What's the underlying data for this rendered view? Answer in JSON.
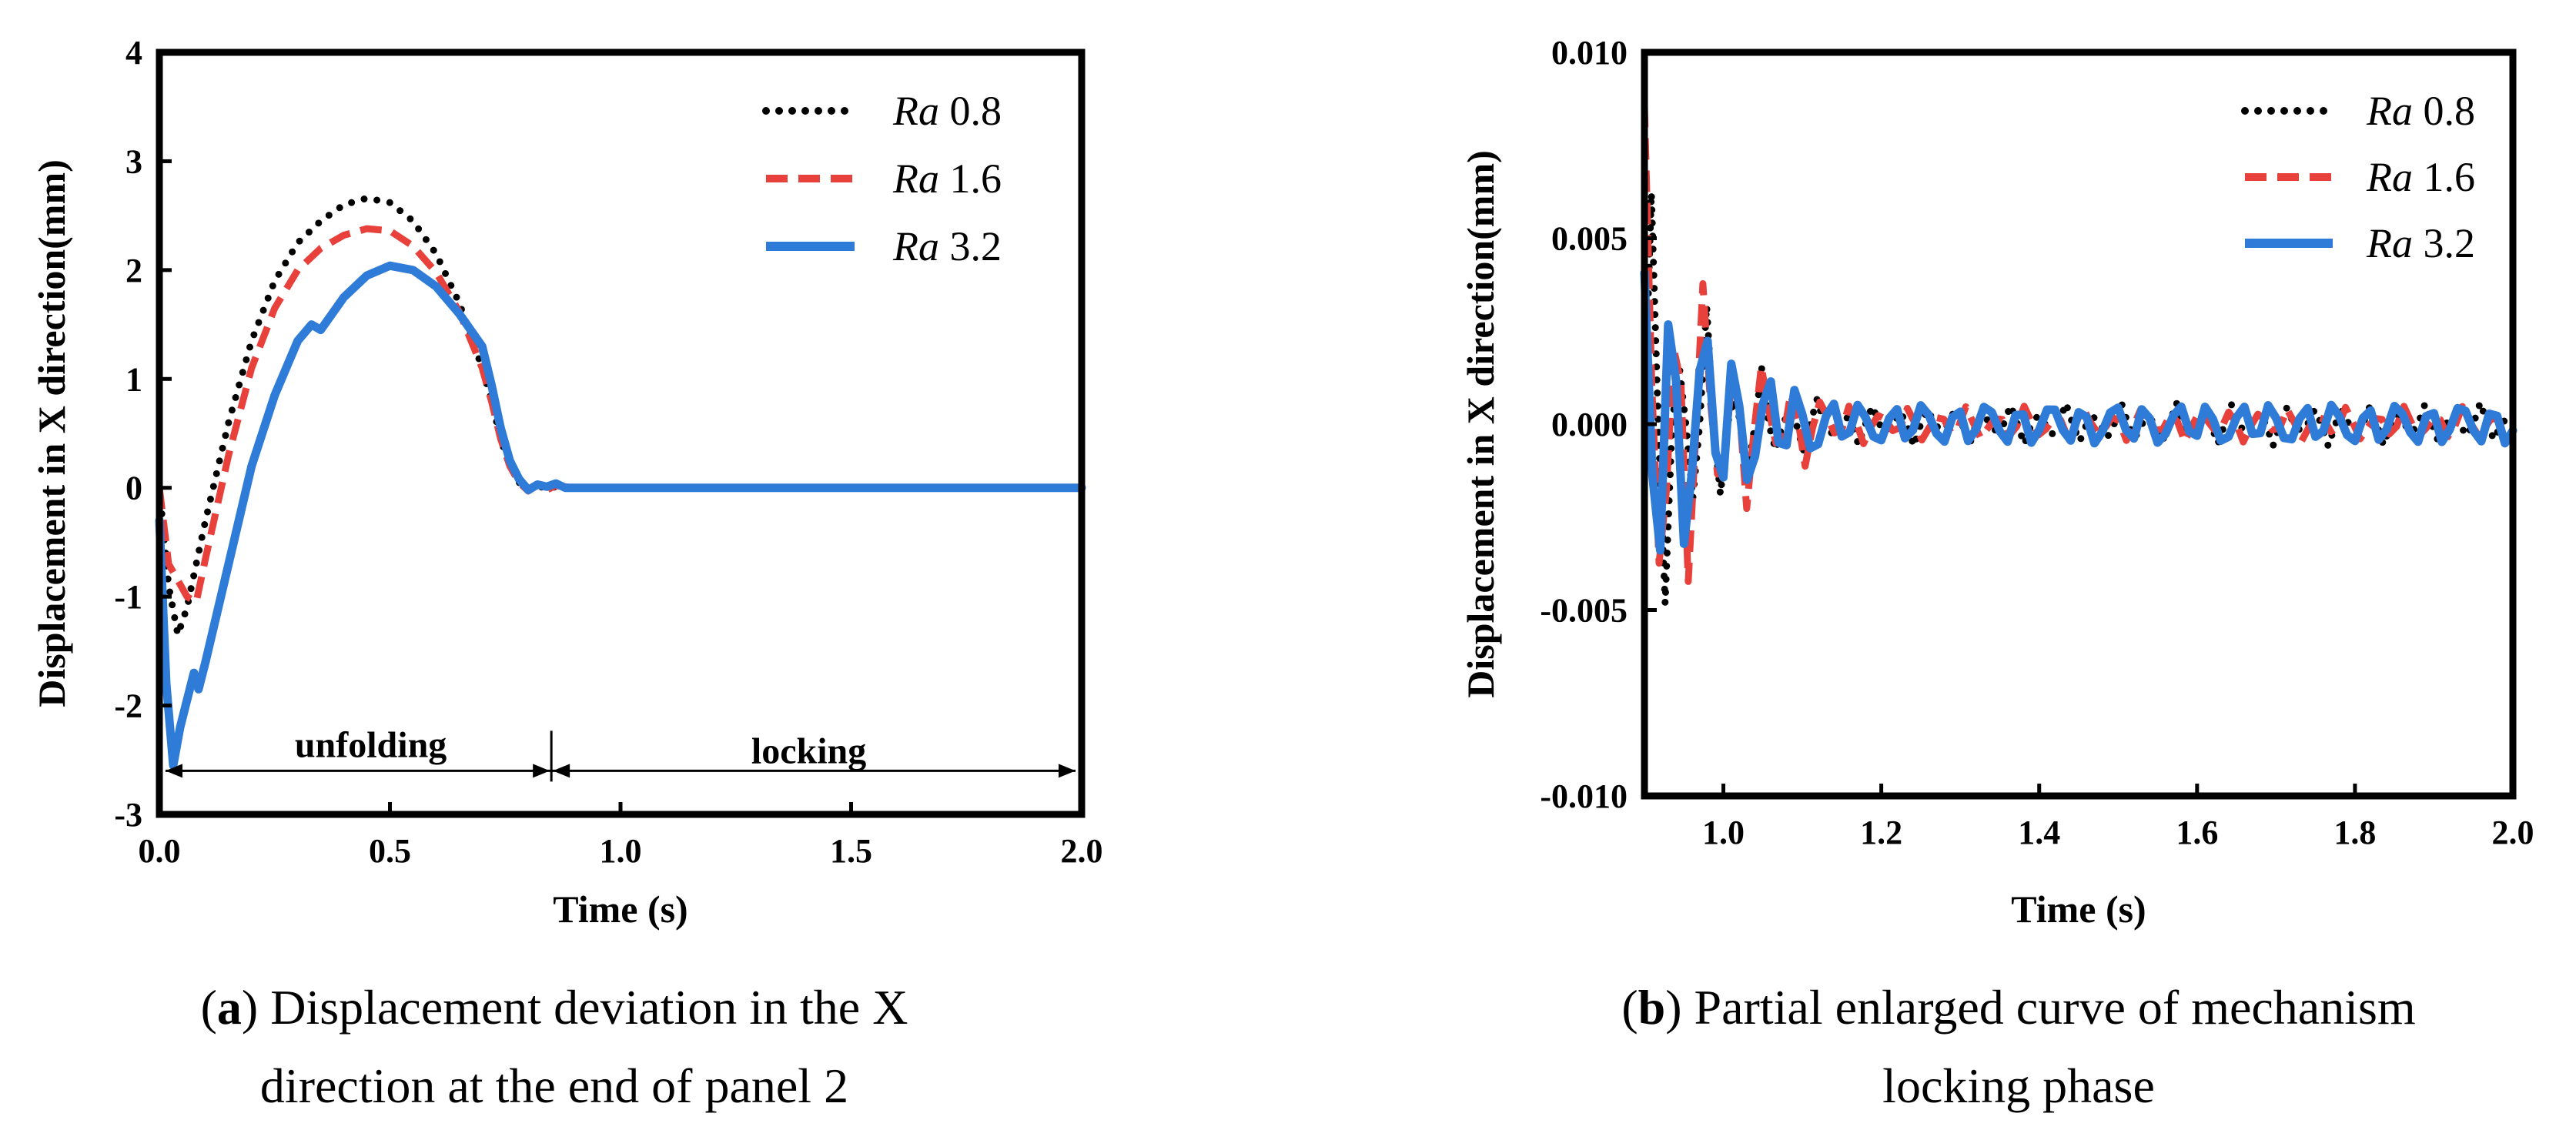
{
  "chart_data": [
    {
      "type": "line",
      "panel": "a",
      "xlabel": "Time (s)",
      "ylabel": "Displacement in X direction(mm)",
      "xlim": [
        0.0,
        2.0
      ],
      "ylim": [
        -3,
        4
      ],
      "xticks": [
        0.0,
        0.5,
        1.0,
        1.5,
        2.0
      ],
      "xtick_labels": [
        "0.0",
        "0.5",
        "1.0",
        "1.5",
        "2.0"
      ],
      "yticks": [
        -3,
        -2,
        -1,
        0,
        1,
        2,
        3,
        4
      ],
      "ytick_labels": [
        "-3",
        "-2",
        "-1",
        "0",
        "1",
        "2",
        "3",
        "4"
      ],
      "legend_position": "top-right",
      "annotations": {
        "split_x": 0.85,
        "arrow_y": -2.6,
        "unfolding_label": "unfolding",
        "locking_label": "locking"
      },
      "series": [
        {
          "name_prefix": "Ra",
          "name_value": "0.8",
          "color": "#000000",
          "style": "dotted",
          "points": [
            [
              0,
              0
            ],
            [
              0.02,
              -0.9
            ],
            [
              0.04,
              -1.35
            ],
            [
              0.06,
              -1.1
            ],
            [
              0.08,
              -0.7
            ],
            [
              0.1,
              -0.3
            ],
            [
              0.15,
              0.6
            ],
            [
              0.2,
              1.35
            ],
            [
              0.25,
              1.9
            ],
            [
              0.3,
              2.25
            ],
            [
              0.35,
              2.45
            ],
            [
              0.4,
              2.6
            ],
            [
              0.45,
              2.66
            ],
            [
              0.5,
              2.62
            ],
            [
              0.55,
              2.45
            ],
            [
              0.6,
              2.15
            ],
            [
              0.65,
              1.7
            ],
            [
              0.7,
              1.1
            ],
            [
              0.72,
              0.8
            ],
            [
              0.74,
              0.45
            ],
            [
              0.76,
              0.2
            ],
            [
              0.78,
              0.05
            ],
            [
              0.8,
              -0.02
            ],
            [
              0.82,
              0.02
            ],
            [
              0.84,
              -0.01
            ],
            [
              0.86,
              0.01
            ],
            [
              0.9,
              0
            ],
            [
              1.0,
              0
            ],
            [
              1.5,
              0
            ],
            [
              2.0,
              0
            ]
          ]
        },
        {
          "name_prefix": "Ra",
          "name_value": "1.6",
          "color": "#e8413c",
          "style": "dashed",
          "points": [
            [
              0,
              0
            ],
            [
              0.02,
              -0.7
            ],
            [
              0.04,
              -0.85
            ],
            [
              0.06,
              -1.0
            ],
            [
              0.08,
              -1.05
            ],
            [
              0.1,
              -0.65
            ],
            [
              0.15,
              0.3
            ],
            [
              0.2,
              1.1
            ],
            [
              0.25,
              1.65
            ],
            [
              0.3,
              2.0
            ],
            [
              0.35,
              2.2
            ],
            [
              0.4,
              2.32
            ],
            [
              0.45,
              2.38
            ],
            [
              0.5,
              2.36
            ],
            [
              0.55,
              2.22
            ],
            [
              0.6,
              1.98
            ],
            [
              0.65,
              1.62
            ],
            [
              0.7,
              1.1
            ],
            [
              0.72,
              0.8
            ],
            [
              0.74,
              0.45
            ],
            [
              0.76,
              0.2
            ],
            [
              0.78,
              0.05
            ],
            [
              0.8,
              -0.03
            ],
            [
              0.82,
              0.03
            ],
            [
              0.84,
              -0.02
            ],
            [
              0.86,
              0.02
            ],
            [
              0.9,
              0
            ],
            [
              1.0,
              0
            ],
            [
              1.5,
              0
            ],
            [
              2.0,
              0
            ]
          ]
        },
        {
          "name_prefix": "Ra",
          "name_value": "3.2",
          "color": "#2f7bd8",
          "style": "solid",
          "points": [
            [
              0,
              -0.3
            ],
            [
              0.015,
              -1.8
            ],
            [
              0.03,
              -2.55
            ],
            [
              0.045,
              -2.2
            ],
            [
              0.06,
              -1.95
            ],
            [
              0.075,
              -1.7
            ],
            [
              0.085,
              -1.85
            ],
            [
              0.1,
              -1.6
            ],
            [
              0.15,
              -0.7
            ],
            [
              0.2,
              0.2
            ],
            [
              0.25,
              0.85
            ],
            [
              0.3,
              1.35
            ],
            [
              0.33,
              1.5
            ],
            [
              0.35,
              1.45
            ],
            [
              0.4,
              1.75
            ],
            [
              0.45,
              1.95
            ],
            [
              0.5,
              2.04
            ],
            [
              0.55,
              2.0
            ],
            [
              0.6,
              1.85
            ],
            [
              0.65,
              1.6
            ],
            [
              0.7,
              1.3
            ],
            [
              0.72,
              0.95
            ],
            [
              0.74,
              0.55
            ],
            [
              0.76,
              0.25
            ],
            [
              0.78,
              0.08
            ],
            [
              0.8,
              -0.02
            ],
            [
              0.82,
              0.03
            ],
            [
              0.84,
              0.01
            ],
            [
              0.86,
              0.04
            ],
            [
              0.88,
              0
            ],
            [
              0.9,
              0
            ],
            [
              1.0,
              0
            ],
            [
              1.5,
              0
            ],
            [
              2.0,
              0
            ]
          ]
        }
      ]
    },
    {
      "type": "line",
      "panel": "b",
      "xlabel": "Time (s)",
      "ylabel": "Displacement in X direction(mm)",
      "xlim": [
        0.9,
        2.0
      ],
      "ylim": [
        -0.01,
        0.01
      ],
      "xticks": [
        1.0,
        1.2,
        1.4,
        1.6,
        1.8,
        2.0
      ],
      "xtick_labels": [
        "1.0",
        "1.2",
        "1.4",
        "1.6",
        "1.8",
        "2.0"
      ],
      "yticks": [
        -0.01,
        -0.005,
        0.0,
        0.005,
        0.01
      ],
      "ytick_labels": [
        "-0.010",
        "-0.005",
        "0.000",
        "0.005",
        "0.010"
      ],
      "legend_position": "top-right",
      "series": [
        {
          "name_prefix": "Ra",
          "name_value": "0.8",
          "color": "#000000",
          "style": "dotted",
          "oscillation": {
            "start": 0.9,
            "end": 2.0,
            "amplitude": 0.0075,
            "period": 0.035,
            "decay": 3.2,
            "floor": 0.0006,
            "phase": 0.0
          }
        },
        {
          "name_prefix": "Ra",
          "name_value": "1.6",
          "color": "#e8413c",
          "style": "dashed",
          "oscillation": {
            "start": 0.9,
            "end": 2.0,
            "amplitude": 0.009,
            "period": 0.037,
            "decay": 3.0,
            "floor": 0.0005,
            "phase": 1.3
          }
        },
        {
          "name_prefix": "Ra",
          "name_value": "3.2",
          "color": "#2f7bd8",
          "style": "solid",
          "oscillation": {
            "start": 0.9,
            "end": 2.0,
            "amplitude": 0.0068,
            "period": 0.04,
            "decay": 2.6,
            "floor": 0.0007,
            "phase": 2.4
          }
        }
      ]
    }
  ],
  "captions": [
    {
      "letter": "a",
      "line1": "Displacement deviation in the X",
      "line2": "direction at the end of panel 2"
    },
    {
      "letter": "b",
      "line1": "Partial enlarged curve of mechanism",
      "line2": "locking phase"
    }
  ]
}
